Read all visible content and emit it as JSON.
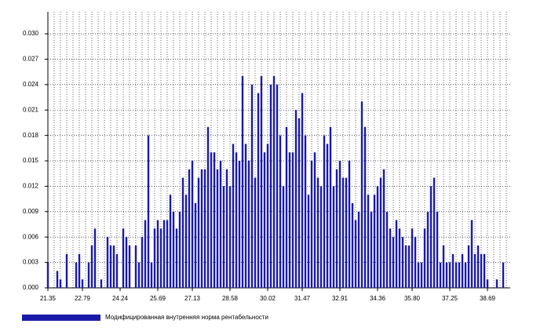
{
  "chart_data": {
    "type": "bar",
    "categories": [
      "21.35",
      null,
      null,
      null,
      null,
      null,
      null,
      null,
      null,
      null,
      null,
      "22.79",
      null,
      null,
      null,
      null,
      null,
      null,
      null,
      null,
      null,
      null,
      null,
      "24.24",
      null,
      null,
      null,
      null,
      null,
      null,
      null,
      null,
      null,
      null,
      null,
      "25.69",
      null,
      null,
      null,
      null,
      null,
      null,
      null,
      null,
      null,
      null,
      "27.13",
      null,
      null,
      null,
      null,
      null,
      null,
      null,
      null,
      null,
      null,
      null,
      "28.58",
      null,
      null,
      null,
      null,
      null,
      null,
      null,
      null,
      null,
      null,
      null,
      "30.02",
      null,
      null,
      null,
      null,
      null,
      null,
      null,
      null,
      null,
      null,
      "31.47",
      null,
      null,
      null,
      null,
      null,
      null,
      null,
      null,
      null,
      null,
      null,
      "32.91",
      null,
      null,
      null,
      null,
      null,
      null,
      null,
      null,
      null,
      null,
      null,
      "34.36",
      null,
      null,
      null,
      null,
      null,
      null,
      null,
      null,
      null,
      null,
      "35.80",
      null,
      null,
      null,
      null,
      null,
      null,
      null,
      null,
      null,
      null,
      null,
      "37.25",
      null,
      null,
      null,
      null,
      null,
      null,
      null,
      null,
      null,
      null,
      null,
      "38.69",
      null,
      null,
      null,
      null,
      null
    ],
    "series": [
      {
        "name": "Модифицированная внутренняя норма рентабельности",
        "color": "#1a1aa8",
        "values": [
          0.003,
          0,
          0,
          0.002,
          0.001,
          0,
          0.004,
          0,
          0,
          0.003,
          0.004,
          0.001,
          0,
          0.003,
          0.005,
          0.007,
          0,
          0.001,
          0,
          0.006,
          0.005,
          0.005,
          0.004,
          0,
          0.007,
          0.006,
          0.005,
          0,
          0.005,
          0.003,
          0.006,
          0.008,
          0.018,
          0.003,
          0.007,
          0.008,
          0.007,
          0.008,
          0.008,
          0.011,
          0.009,
          0.007,
          0.009,
          0.013,
          0.011,
          0.014,
          0.015,
          0.01,
          0.013,
          0.014,
          0.014,
          0.019,
          0.016,
          0.016,
          0.014,
          0.015,
          0.012,
          0.014,
          0.012,
          0.017,
          0.016,
          0.015,
          0.025,
          0.017,
          0.015,
          0.024,
          0.013,
          0.023,
          0.025,
          0.016,
          0.017,
          0.024,
          0.025,
          0.024,
          0.018,
          0.012,
          0.019,
          0.016,
          0.016,
          0.021,
          0.02,
          0.023,
          0.018,
          0.011,
          0.015,
          0.016,
          0.013,
          0.012,
          0.018,
          0.017,
          0.019,
          0.012,
          0.014,
          0.015,
          0.013,
          0.013,
          0.015,
          0.01,
          0.008,
          0.009,
          0.022,
          0.019,
          0.011,
          0.009,
          0.011,
          0.012,
          0.013,
          0.014,
          0.009,
          0.007,
          0.006,
          0.008,
          0.007,
          0.006,
          0.005,
          0.005,
          0.007,
          0.006,
          0.003,
          0.003,
          0.007,
          0.009,
          0.012,
          0.013,
          0.009,
          0.003,
          0.005,
          0.003,
          0.003,
          0.004,
          0.003,
          0.003,
          0.004,
          0.003,
          0.005,
          0.008,
          0.004,
          0.005,
          0.004,
          0.004,
          0.001,
          0,
          0,
          0.001,
          0,
          0.003
        ]
      }
    ],
    "ylim": [
      0,
      0.0326
    ],
    "yticks": [
      {
        "value": 0,
        "label": "0.000"
      },
      {
        "value": 0.003,
        "label": "0.003"
      },
      {
        "value": 0.006,
        "label": "0.006"
      },
      {
        "value": 0.009,
        "label": "0.009"
      },
      {
        "value": 0.012,
        "label": "0.012"
      },
      {
        "value": 0.015,
        "label": "0.015"
      },
      {
        "value": 0.018,
        "label": "0.018"
      },
      {
        "value": 0.021,
        "label": "0.021"
      },
      {
        "value": 0.024,
        "label": "0.024"
      },
      {
        "value": 0.027,
        "label": "0.027"
      },
      {
        "value": 0.03,
        "label": "0.030"
      }
    ],
    "grid": true,
    "legend": "bottom-left"
  }
}
